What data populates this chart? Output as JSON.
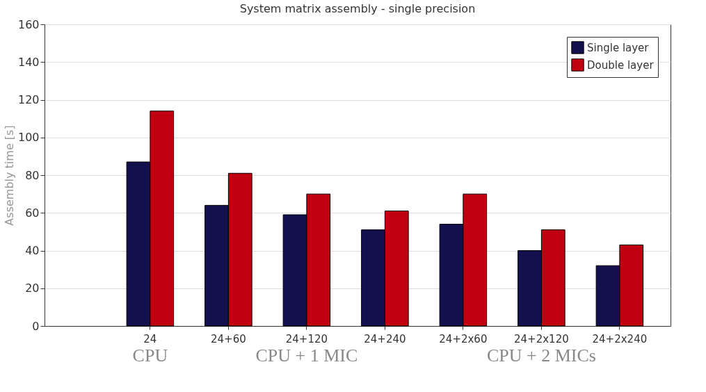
{
  "chart_data": {
    "type": "bar",
    "title": "System matrix assembly - single precision",
    "ylabel": "Assembly time [s]",
    "categories": [
      "24",
      "24+60",
      "24+120",
      "24+240",
      "24+2x60",
      "24+2x120",
      "24+2x240"
    ],
    "series": [
      {
        "name": "Single layer",
        "color": "#13104e",
        "values": [
          87,
          64,
          59,
          51,
          54,
          40,
          32
        ]
      },
      {
        "name": "Double layer",
        "color": "#c00010",
        "values": [
          114,
          81,
          70,
          61,
          70,
          51,
          43
        ]
      }
    ],
    "ylim": [
      0,
      160
    ],
    "yticks": [
      0,
      20,
      40,
      60,
      80,
      100,
      120,
      140,
      160
    ],
    "grid": "y",
    "legend": "top right",
    "annotations": [
      "CPU",
      "CPU + 1 MIC",
      "CPU + 2 MICs"
    ]
  }
}
